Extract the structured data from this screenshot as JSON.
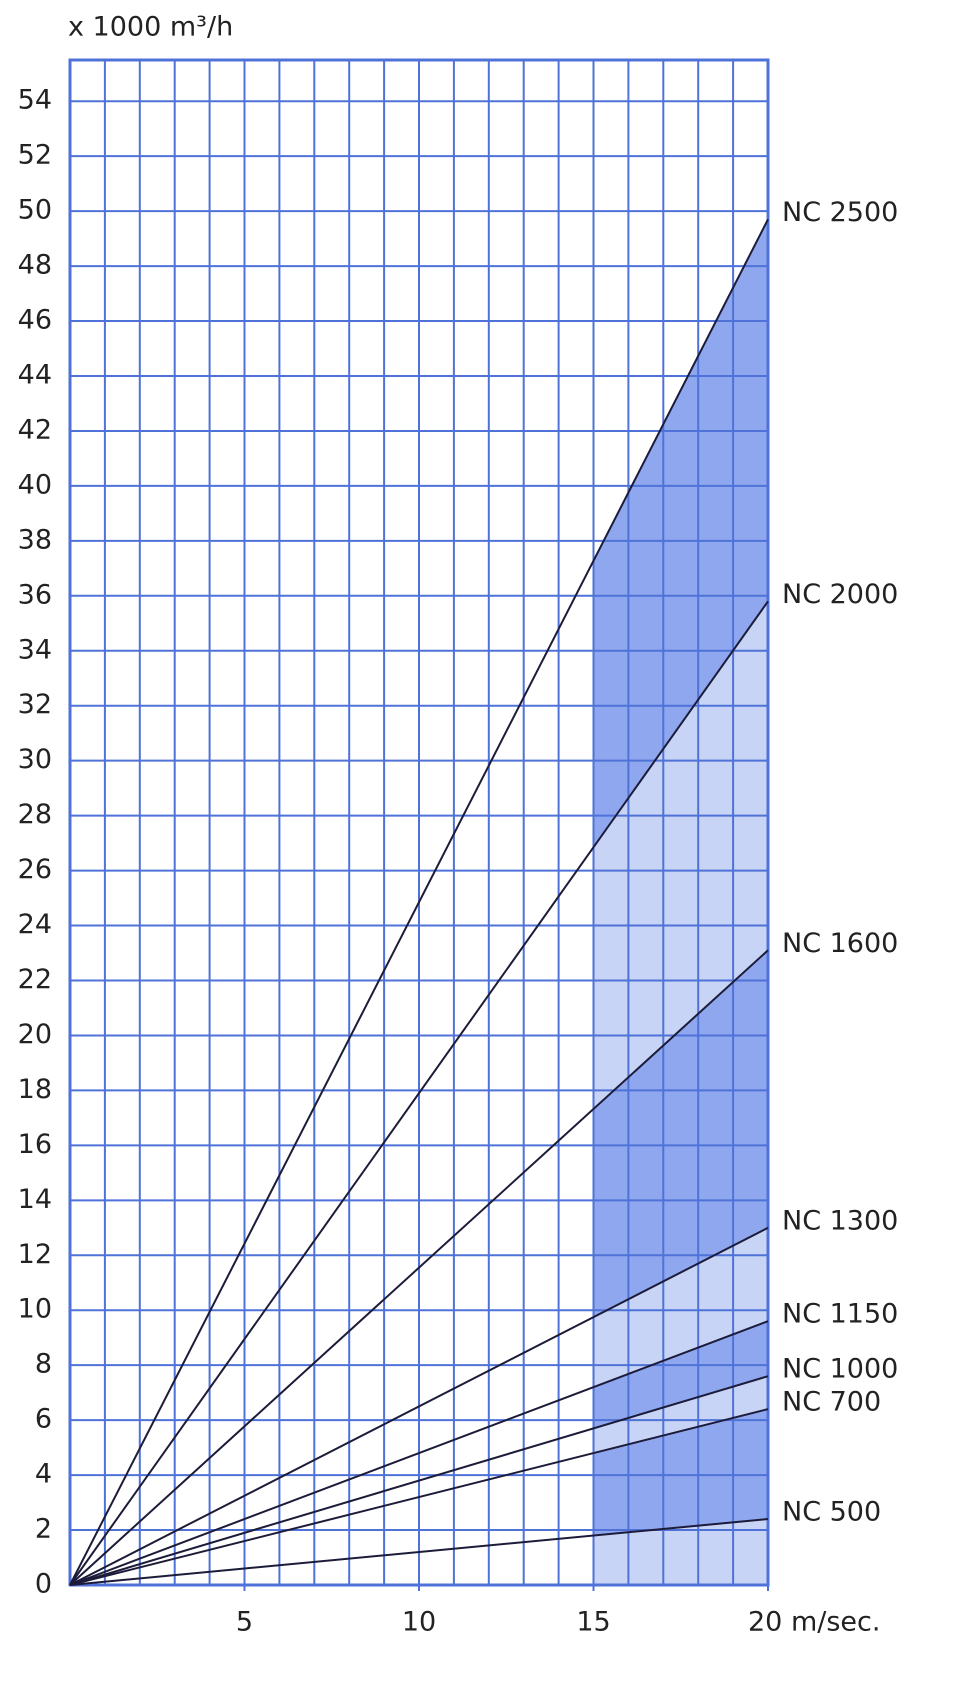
{
  "chart_data": {
    "type": "line",
    "title": "x 1000 m³/h",
    "x": [
      0,
      20
    ],
    "series": [
      {
        "name": "NC 2500",
        "color": "#1c1c3a",
        "values": [
          0,
          49.7
        ]
      },
      {
        "name": "NC 2000",
        "color": "#1c1c3a",
        "values": [
          0,
          35.8
        ]
      },
      {
        "name": "NC 1600",
        "color": "#1c1c3a",
        "values": [
          0,
          23.1
        ]
      },
      {
        "name": "NC 1300",
        "color": "#1c1c3a",
        "values": [
          0,
          13
        ]
      },
      {
        "name": "NC 1150",
        "color": "#1c1c3a",
        "values": [
          0,
          9.6
        ]
      },
      {
        "name": "NC 1000",
        "color": "#1c1c3a",
        "values": [
          0,
          7.6
        ]
      },
      {
        "name": "NC 700",
        "color": "#1c1c3a",
        "values": [
          0,
          6.4
        ]
      },
      {
        "name": "NC 500",
        "color": "#1c1c3a",
        "values": [
          0,
          2.4
        ]
      }
    ],
    "xlim": [
      0,
      20
    ],
    "ylim": [
      0,
      55.5
    ],
    "xticks": [
      5,
      10,
      15,
      {
        "value": 20,
        "label": "20 m/sec."
      }
    ],
    "yticks": [
      0,
      2,
      4,
      6,
      8,
      10,
      12,
      14,
      16,
      18,
      20,
      22,
      24,
      26,
      28,
      30,
      32,
      34,
      36,
      38,
      40,
      42,
      44,
      46,
      48,
      50,
      52,
      54
    ],
    "grid": true,
    "x_grid_step": 1,
    "grid_color": "#4f72d8",
    "highlight_xrange": [
      15,
      20
    ],
    "band_colors": [
      "#8fa7ee",
      "#c7d4f5"
    ]
  }
}
